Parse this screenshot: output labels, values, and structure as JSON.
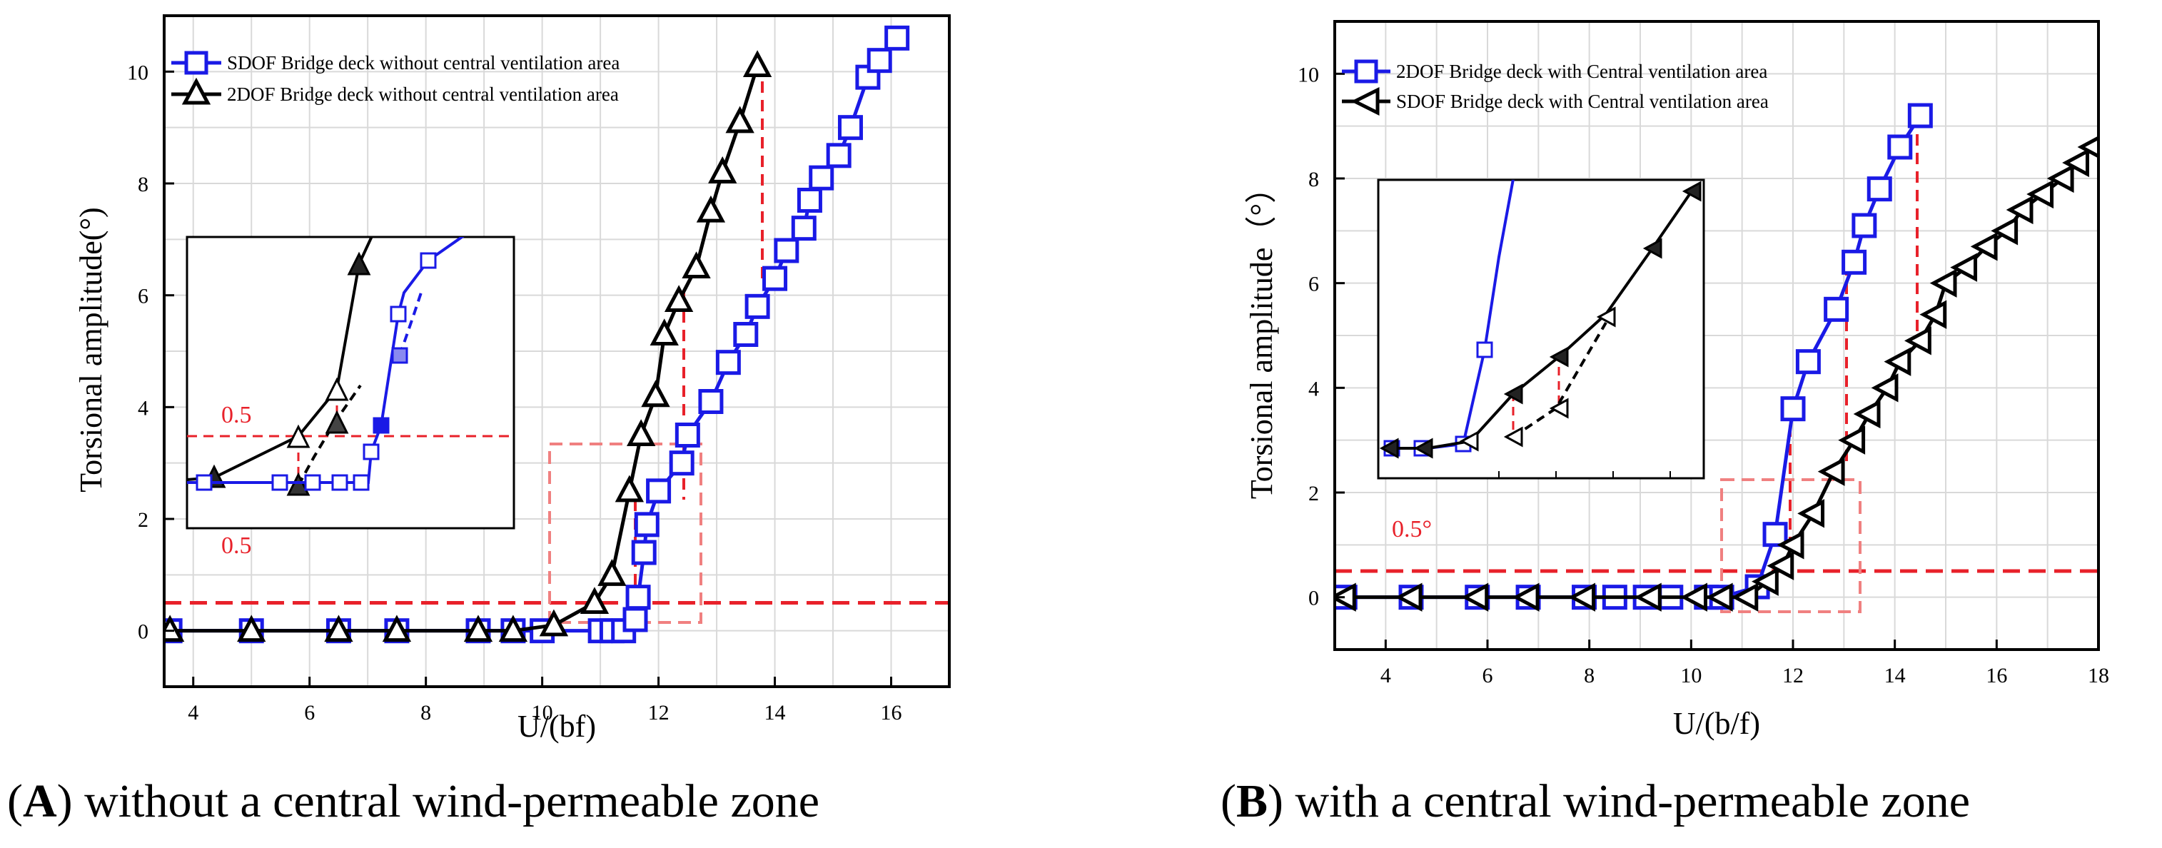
{
  "chart_data": [
    {
      "type": "line",
      "panel": "A",
      "caption_letter": "A",
      "caption_text": "without a central wind-permeable zone",
      "xlabel": "U/(bf)",
      "ylabel": "Torsional amplitude(°)",
      "xlim": [
        3.5,
        17
      ],
      "ylim": [
        -1,
        11
      ],
      "xticks": [
        4,
        6,
        8,
        10,
        12,
        14,
        16
      ],
      "yticks": [
        0,
        2,
        4,
        6,
        8,
        10
      ],
      "grid": true,
      "legend_position": "top-left",
      "threshold": 0.5,
      "threshold_label": "0.5",
      "series": [
        {
          "name": "SDOF Bridge deck without central ventilation area",
          "color": "#1a1ae6",
          "marker": "square",
          "x": [
            3.6,
            5.0,
            6.5,
            7.5,
            8.9,
            9.5,
            10.0,
            11.0,
            11.2,
            11.4,
            11.6,
            11.65,
            11.75,
            11.8,
            12.0,
            12.4,
            12.5,
            12.9,
            13.2,
            13.5,
            13.7,
            14.0,
            14.2,
            14.5,
            14.6,
            14.8,
            15.1,
            15.3,
            15.6,
            15.8,
            16.1
          ],
          "y": [
            0,
            0,
            0,
            0,
            0,
            0,
            0,
            0,
            0,
            0,
            0.2,
            0.6,
            1.4,
            1.9,
            2.5,
            3.0,
            3.5,
            4.1,
            4.8,
            5.3,
            5.8,
            6.3,
            6.8,
            7.2,
            7.7,
            8.1,
            8.5,
            9.0,
            9.9,
            10.2,
            10.6
          ]
        },
        {
          "name": "2DOF Bridge deck without central ventilation area",
          "color": "#000000",
          "marker": "triangle-up",
          "x": [
            3.6,
            5.0,
            6.5,
            7.5,
            8.9,
            9.5,
            10.2,
            10.9,
            11.2,
            11.5,
            11.7,
            11.95,
            12.1,
            12.35,
            12.65,
            12.9,
            13.1,
            13.4,
            13.7
          ],
          "y": [
            0,
            0,
            0,
            0,
            0,
            0,
            0.1,
            0.5,
            1.0,
            2.5,
            3.5,
            4.2,
            5.3,
            5.9,
            6.5,
            7.5,
            8.2,
            9.1,
            10.1
          ]
        }
      ],
      "inset_labels": [
        "0.5"
      ]
    },
    {
      "type": "line",
      "panel": "B",
      "caption_letter": "B",
      "caption_text": "with a central wind-permeable zone",
      "xlabel": "U/(b/f)",
      "ylabel": "Torsional amplitude（°）",
      "xlim": [
        3,
        18
      ],
      "ylim": [
        -1,
        11
      ],
      "xticks": [
        4,
        6,
        8,
        10,
        12,
        14,
        16,
        18
      ],
      "yticks": [
        0,
        2,
        4,
        6,
        8,
        10
      ],
      "grid": true,
      "legend_position": "top-left",
      "threshold": 0.5,
      "threshold_label": "0.5°",
      "series": [
        {
          "name": "2DOF Bridge deck with Central ventilation area",
          "color": "#1a1ae6",
          "marker": "square",
          "x": [
            3.2,
            4.5,
            5.8,
            6.8,
            7.9,
            8.5,
            9.1,
            9.6,
            10.3,
            10.6,
            11.3,
            11.65,
            12.0,
            12.3,
            12.85,
            13.2,
            13.4,
            13.7,
            14.1,
            14.5
          ],
          "y": [
            0,
            0,
            0,
            0,
            0,
            0,
            0,
            0,
            0,
            0,
            0.2,
            1.2,
            3.6,
            4.5,
            5.5,
            6.4,
            7.1,
            7.8,
            8.6,
            9.2
          ]
        },
        {
          "name": "SDOF Bridge deck with Central ventilation area",
          "color": "#000000",
          "marker": "triangle-left",
          "x": [
            3.2,
            4.5,
            5.8,
            6.8,
            7.9,
            9.2,
            10.1,
            10.6,
            11.1,
            11.5,
            11.8,
            12.0,
            12.4,
            12.8,
            13.2,
            13.5,
            13.85,
            14.1,
            14.5,
            14.8,
            15.0,
            15.4,
            15.8,
            16.2,
            16.5,
            16.9,
            17.3,
            17.6,
            17.9
          ],
          "y": [
            0,
            0,
            0,
            0,
            0,
            0,
            0,
            0,
            0,
            0.3,
            0.6,
            1.0,
            1.6,
            2.4,
            3.0,
            3.5,
            4.0,
            4.5,
            4.9,
            5.4,
            6.0,
            6.3,
            6.7,
            7.0,
            7.4,
            7.7,
            8.0,
            8.3,
            8.6
          ]
        }
      ]
    }
  ]
}
